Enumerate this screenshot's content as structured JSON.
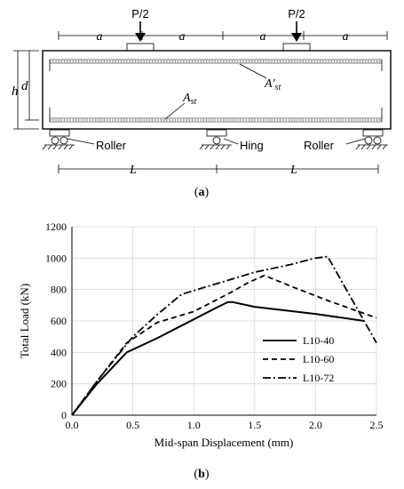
{
  "beam": {
    "loads": [
      "P/2",
      "P/2"
    ],
    "spans": [
      "a",
      "a",
      "a",
      "a"
    ],
    "h": "h",
    "d": "d",
    "a_st_top_main": "A'",
    "a_st_top_sub": "st",
    "a_st_bot_main": "A",
    "a_st_bot_sub": "st",
    "support_left": "Roller",
    "support_mid": "Hing",
    "support_right": "Roller",
    "L_left": "L",
    "L_right": "L",
    "caption_a": "(a)",
    "caption_a_open": "(",
    "caption_a_letter": "a",
    "caption_a_close": ")"
  },
  "caption_b_open": "(",
  "caption_b_letter": "b",
  "caption_b_close": ")",
  "chart_data": {
    "type": "line",
    "xlabel": "Mid-span Displacement (mm)",
    "ylabel": "Total Load (kN)",
    "xlim": [
      0,
      2.5
    ],
    "ylim": [
      0,
      1200
    ],
    "xticks": [
      "0.0",
      "0.5",
      "1.0",
      "1.5",
      "2.0",
      "2.5"
    ],
    "yticks": [
      "0",
      "200",
      "400",
      "600",
      "800",
      "1000",
      "1200"
    ],
    "grid": true,
    "legend_position": "center-right",
    "series": [
      {
        "name": "L10-40",
        "style": "solid",
        "x": [
          0,
          0.2,
          0.45,
          0.7,
          1.0,
          1.2,
          1.28,
          1.32,
          1.5,
          2.0,
          2.4
        ],
        "y": [
          0,
          195,
          400,
          490,
          610,
          690,
          720,
          720,
          690,
          645,
          600
        ]
      },
      {
        "name": "L10-60",
        "style": "dashed",
        "x": [
          0,
          0.2,
          0.45,
          0.7,
          1.0,
          1.3,
          1.45,
          1.58,
          1.8,
          2.1,
          2.5
        ],
        "y": [
          0,
          210,
          460,
          590,
          660,
          780,
          845,
          890,
          820,
          730,
          620
        ]
      },
      {
        "name": "L10-72",
        "style": "dashdot",
        "x": [
          0,
          0.2,
          0.5,
          0.7,
          0.9,
          1.2,
          1.5,
          1.8,
          2.0,
          2.1,
          2.5
        ],
        "y": [
          0,
          210,
          500,
          640,
          770,
          840,
          910,
          960,
          1000,
          1010,
          460
        ]
      }
    ]
  }
}
